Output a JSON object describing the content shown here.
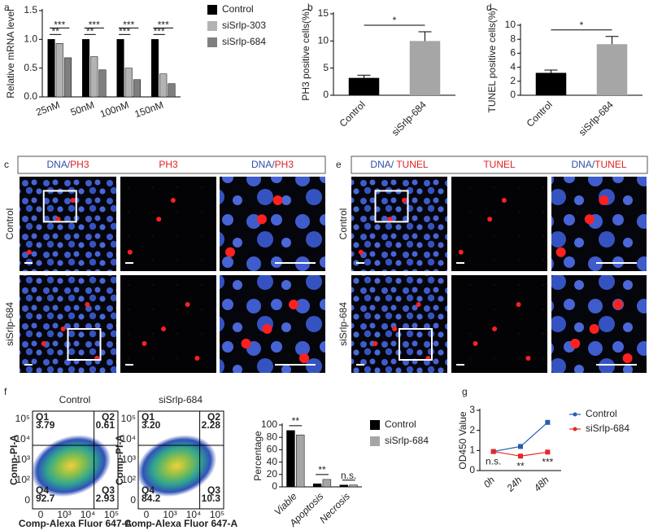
{
  "chart_data": [
    {
      "label": "a",
      "type": "bar",
      "ylabel": "Relative mRNA level",
      "categories": [
        "25nM",
        "50nM",
        "100nM",
        "150nM"
      ],
      "series": [
        {
          "name": "Control",
          "color": "#000000",
          "values": [
            1,
            1,
            1,
            1
          ]
        },
        {
          "name": "siSrlp-303",
          "color": "#b3b3b3",
          "values": [
            0.93,
            0.7,
            0.5,
            0.4
          ],
          "significance": [
            "**",
            "**",
            "***",
            "***"
          ]
        },
        {
          "name": "siSrlp-684",
          "color": "#7f7f7f",
          "values": [
            0.68,
            0.47,
            0.3,
            0.23
          ],
          "significance": [
            "***",
            "***",
            "***",
            "***"
          ]
        }
      ],
      "ylim": [
        0,
        1.5
      ],
      "yticks": [
        {
          "value": 0,
          "label": "0.0"
        },
        {
          "value": 0.5,
          "label": "0.5"
        },
        {
          "value": 1,
          "label": "1.0"
        },
        {
          "value": 1.5,
          "label": "1.5"
        }
      ]
    },
    {
      "label": "b",
      "type": "bar",
      "ylabel": "PH3 positive cells(%)",
      "categories": [
        "Control",
        "siSrlp-684"
      ],
      "values": [
        3.2,
        10
      ],
      "errors": [
        0.5,
        1.7
      ],
      "colors": [
        "#000000",
        "#a6a6a6"
      ],
      "significance": "*",
      "ylim": [
        0,
        15
      ],
      "yticks": [
        0,
        5,
        10,
        15
      ]
    },
    {
      "label": "d",
      "type": "bar",
      "ylabel": "TUNEL positive cells(%)",
      "categories": [
        "Control",
        "siSrlp-684"
      ],
      "values": [
        3.2,
        7.3
      ],
      "errors": [
        0.4,
        1.1
      ],
      "colors": [
        "#000000",
        "#a6a6a6"
      ],
      "significance": "*",
      "ylim": [
        0,
        10
      ],
      "yticks": [
        0,
        2,
        4,
        6,
        8,
        10
      ]
    },
    {
      "label": "f",
      "type": "bar",
      "ylabel": "Percentage",
      "categories": [
        "Viable",
        "Apoptosis",
        "Necrosis"
      ],
      "series": [
        {
          "name": "Control",
          "color": "#000000",
          "values": [
            91,
            5,
            3
          ]
        },
        {
          "name": "siSrlp-684",
          "color": "#a6a6a6",
          "values": [
            84,
            12,
            3
          ]
        }
      ],
      "significance": [
        "**",
        "**",
        "n.s."
      ],
      "ylim": [
        0,
        100
      ],
      "yticks": [
        0,
        20,
        40,
        60,
        80,
        100
      ]
    },
    {
      "label": "g",
      "type": "line",
      "ylabel": "OD450 Value",
      "categories": [
        "0h",
        "24h",
        "48h"
      ],
      "series": [
        {
          "name": "Control",
          "color": "#2a5caa",
          "values": [
            0.95,
            1.2,
            2.4
          ]
        },
        {
          "name": "siSrlp-684",
          "color": "#e8262a",
          "values": [
            0.95,
            0.72,
            0.92
          ]
        }
      ],
      "significance": [
        "n.s.",
        "**",
        "***"
      ],
      "ylim": [
        0,
        3
      ],
      "yticks": [
        0,
        1,
        2,
        3
      ]
    }
  ],
  "image_panels": [
    {
      "label": "c",
      "headers": [
        [
          {
            "text": "DNA",
            "color": "#2e4fa8"
          },
          {
            "text": "/",
            "color": "#2e4fa8"
          },
          {
            "text": "PH3",
            "color": "#e02020"
          }
        ],
        [
          {
            "text": "PH3",
            "color": "#e02020"
          }
        ],
        [
          {
            "text": "DNA",
            "color": "#2e4fa8"
          },
          {
            "text": "/",
            "color": "#2e4fa8"
          },
          {
            "text": "PH3",
            "color": "#e02020"
          }
        ]
      ],
      "rows": [
        "Control",
        "siSrlp-684"
      ]
    },
    {
      "label": "e",
      "headers": [
        [
          {
            "text": "DNA",
            "color": "#2e4fa8"
          },
          {
            "text": "/ ",
            "color": "#2e4fa8"
          },
          {
            "text": "TUNEL",
            "color": "#e02020"
          }
        ],
        [
          {
            "text": "TUNEL",
            "color": "#e02020"
          }
        ],
        [
          {
            "text": "DNA",
            "color": "#2e4fa8"
          },
          {
            "text": "/",
            "color": "#2e4fa8"
          },
          {
            "text": "TUNEL",
            "color": "#e02020"
          }
        ]
      ],
      "rows": [
        "Control",
        "siSrlp-684"
      ]
    }
  ],
  "flow_panels": [
    {
      "title": "Control",
      "ylabel": "Comp-PI-A",
      "xlabel": "Comp-Alexa Fluor 647-A",
      "yticks": [
        "10⁵",
        "10⁴",
        "10³",
        "10²",
        "0"
      ],
      "xticks": [
        "0",
        "10³",
        "10⁴",
        "10⁵"
      ],
      "quadrants": [
        {
          "name": "Q1",
          "value": "3.79"
        },
        {
          "name": "Q2",
          "value": "0.61"
        },
        {
          "name": "Q3",
          "value": "2.93"
        },
        {
          "name": "Q4",
          "value": "92.7"
        }
      ]
    },
    {
      "title": "siSrlp-684",
      "ylabel": "Comp-PI-A",
      "xlabel": "Comp-Alexa Fluor 647-A",
      "yticks": [
        "10⁵",
        "10⁴",
        "10³",
        "10²",
        "0"
      ],
      "xticks": [
        "0",
        "10³",
        "10⁴",
        "10⁵"
      ],
      "quadrants": [
        {
          "name": "Q1",
          "value": "3.20"
        },
        {
          "name": "Q2",
          "value": "2.28"
        },
        {
          "name": "Q3",
          "value": "10.3"
        },
        {
          "name": "Q4",
          "value": "84.2"
        }
      ]
    }
  ]
}
